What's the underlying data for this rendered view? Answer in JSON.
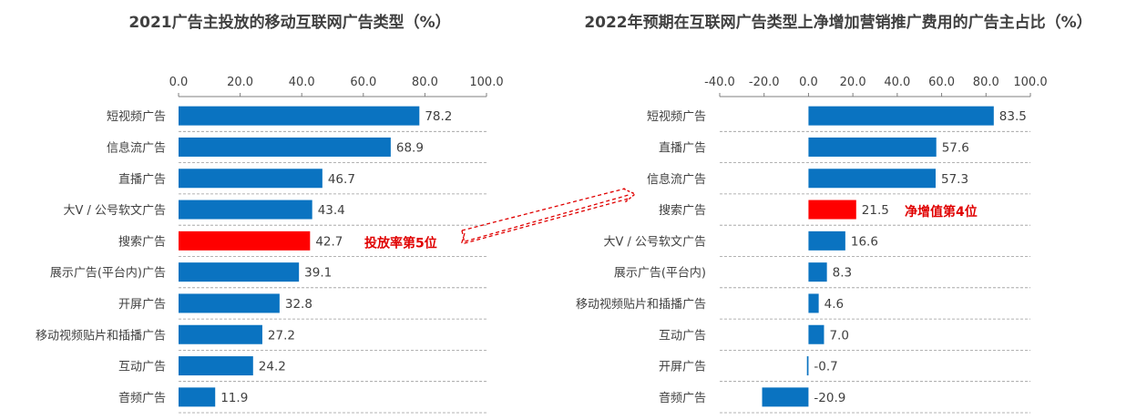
{
  "colors": {
    "bar": "#0a73c1",
    "highlight": "#ff0000",
    "annotation": "#e00000",
    "grid": "#9a9a9a",
    "text": "#404040"
  },
  "chart_data": [
    {
      "type": "bar",
      "orientation": "horizontal",
      "title": "2021广告主投放的移动互联网广告类型（%）",
      "categories": [
        "短视频广告",
        "信息流广告",
        "直播广告",
        "大V / 公号软文广告",
        "搜索广告",
        "展示广告(平台内)广告",
        "开屏广告",
        "移动视频贴片和插播广告",
        "互动广告",
        "音频广告"
      ],
      "values": [
        78.2,
        68.9,
        46.7,
        43.4,
        42.7,
        39.1,
        32.8,
        27.2,
        24.2,
        11.9
      ],
      "value_labels": [
        "78.2",
        "68.9",
        "46.7",
        "43.4",
        "42.7",
        "39.1",
        "32.8",
        "27.2",
        "24.2",
        "11.9"
      ],
      "xlim": [
        0,
        100
      ],
      "ticks": [
        "0.0",
        "20.0",
        "40.0",
        "60.0",
        "80.0",
        "100.0"
      ],
      "tick_values": [
        0,
        20,
        40,
        60,
        80,
        100
      ],
      "axis_position": "top",
      "highlight_index": 4,
      "annotation": "投放率第5位"
    },
    {
      "type": "bar",
      "orientation": "horizontal",
      "title": "2022年预期在互联网广告类型上净增加营销推广费用的广告主占比（%）",
      "categories": [
        "短视频广告",
        "直播广告",
        "信息流广告",
        "搜索广告",
        "大V / 公号软文广告",
        "展示广告(平台内)",
        "移动视频贴片和插播广告",
        "互动广告",
        "开屏广告",
        "音频广告"
      ],
      "values": [
        83.5,
        57.6,
        57.3,
        21.5,
        16.6,
        8.3,
        4.6,
        7.0,
        -0.7,
        -20.9
      ],
      "value_labels": [
        "83.5",
        "57.6",
        "57.3",
        "21.5",
        "16.6",
        "8.3",
        "4.6",
        "7.0",
        "-0.7",
        "-20.9"
      ],
      "xlim": [
        -40,
        100
      ],
      "ticks": [
        "-40.0",
        "-20.0",
        "0.0",
        "20.0",
        "40.0",
        "60.0",
        "80.0",
        "100.0"
      ],
      "tick_values": [
        -40,
        -20,
        0,
        20,
        40,
        60,
        80,
        100
      ],
      "axis_position": "top",
      "highlight_index": 3,
      "annotation": "净增值第4位"
    }
  ]
}
